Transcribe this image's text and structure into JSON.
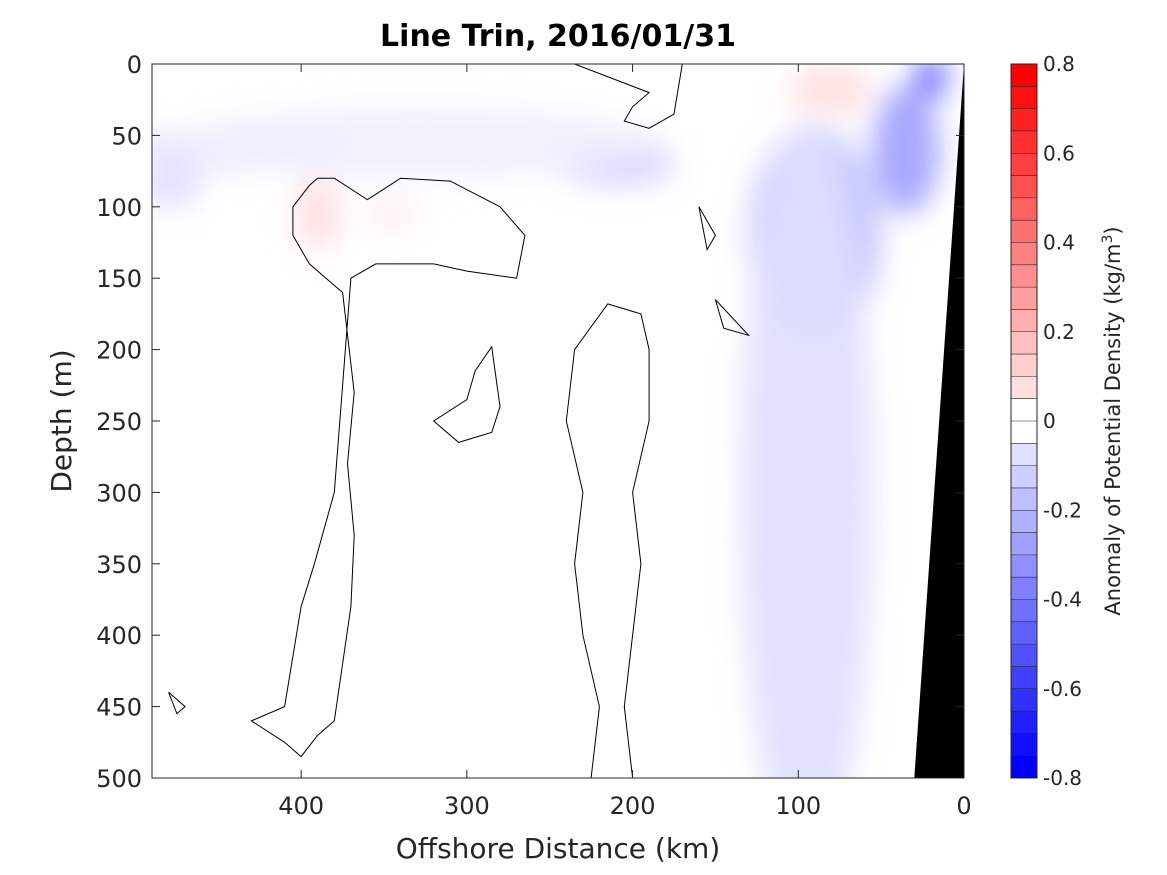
{
  "chart_data": {
    "type": "heatmap",
    "title": "Line Trin, 2016/01/31",
    "xlabel": "Offshore Distance (km)",
    "ylabel": "Depth (m)",
    "xlim": [
      490,
      0
    ],
    "ylim": [
      0,
      500
    ],
    "x_reversed": true,
    "y_reversed": true,
    "x_ticks": [
      400,
      300,
      200,
      100,
      0
    ],
    "x_tick_labels": [
      "400",
      "300",
      "200",
      "100",
      "0"
    ],
    "y_ticks": [
      0,
      50,
      100,
      150,
      200,
      250,
      300,
      350,
      400,
      450,
      500
    ],
    "y_tick_labels": [
      "0",
      "50",
      "100",
      "150",
      "200",
      "250",
      "300",
      "350",
      "400",
      "450",
      "500"
    ],
    "colorbar": {
      "label_main": "Anomaly of Potential Density (kg/m",
      "label_sup": "3",
      "label_end": ")",
      "range": [
        -0.8,
        0.8
      ],
      "step": 0.05,
      "ticks": [
        0.8,
        0.6,
        0.4,
        0.2,
        0,
        -0.2,
        -0.4,
        -0.6,
        -0.8
      ],
      "tick_labels": [
        "0.8",
        "0.6",
        "0.4",
        "0.2",
        "0",
        "-0.2",
        "-0.4",
        "-0.6",
        "-0.8"
      ],
      "colormap": "blue-white-red",
      "negative_color": "#0000ff",
      "zero_color": "#ffffff",
      "positive_color": "#ff0000"
    },
    "zero_contour": true,
    "grid": false,
    "mask_color": "#000000",
    "bottom_mask": {
      "description_free": true,
      "points": [
        [
          0,
          0
        ],
        [
          0,
          500
        ],
        [
          30,
          500
        ]
      ]
    },
    "field_features": [
      {
        "x": 480,
        "y": 85,
        "dx": 20,
        "dy": 15,
        "value": -0.12
      },
      {
        "x": 440,
        "y": 60,
        "dx": 60,
        "dy": 15,
        "value": -0.08
      },
      {
        "x": 390,
        "y": 105,
        "dx": 14,
        "dy": 25,
        "value": 0.08
      },
      {
        "x": 345,
        "y": 105,
        "dx": 18,
        "dy": 12,
        "value": 0.04
      },
      {
        "x": 210,
        "y": 70,
        "dx": 35,
        "dy": 15,
        "value": -0.14
      },
      {
        "x": 80,
        "y": 18,
        "dx": 25,
        "dy": 18,
        "value": 0.08
      },
      {
        "x": 20,
        "y": 10,
        "dx": 10,
        "dy": 15,
        "value": -0.5
      },
      {
        "x": 35,
        "y": 60,
        "dx": 20,
        "dy": 45,
        "value": -0.3
      },
      {
        "x": 90,
        "y": 120,
        "dx": 40,
        "dy": 75,
        "value": -0.22
      },
      {
        "x": 95,
        "y": 300,
        "dx": 40,
        "dy": 260,
        "value": -0.08
      },
      {
        "x": 330,
        "y": 55,
        "dx": 150,
        "dy": 25,
        "value": -0.05
      }
    ],
    "contours_zero": [
      [
        [
          170,
          0
        ],
        [
          235,
          0
        ],
        [
          190,
          20
        ],
        [
          200,
          30
        ],
        [
          205,
          40
        ],
        [
          190,
          45
        ],
        [
          175,
          35
        ],
        [
          170,
          0
        ]
      ],
      [
        [
          390,
          80
        ],
        [
          380,
          80
        ],
        [
          360,
          95
        ],
        [
          340,
          80
        ],
        [
          310,
          82
        ],
        [
          280,
          100
        ],
        [
          265,
          120
        ],
        [
          270,
          150
        ],
        [
          300,
          145
        ],
        [
          320,
          140
        ],
        [
          335,
          140
        ],
        [
          355,
          140
        ],
        [
          370,
          150
        ],
        [
          380,
          300
        ],
        [
          392,
          350
        ],
        [
          400,
          380
        ],
        [
          410,
          450
        ],
        [
          430,
          460
        ],
        [
          410,
          475
        ],
        [
          400,
          485
        ],
        [
          390,
          470
        ],
        [
          380,
          460
        ],
        [
          375,
          420
        ],
        [
          370,
          380
        ],
        [
          368,
          330
        ],
        [
          372,
          280
        ],
        [
          368,
          230
        ],
        [
          375,
          160
        ],
        [
          385,
          150
        ],
        [
          395,
          140
        ],
        [
          405,
          120
        ],
        [
          405,
          100
        ],
        [
          395,
          85
        ],
        [
          390,
          80
        ]
      ],
      [
        [
          215,
          168
        ],
        [
          195,
          175
        ],
        [
          190,
          200
        ],
        [
          190,
          250
        ],
        [
          200,
          300
        ],
        [
          195,
          350
        ],
        [
          200,
          400
        ],
        [
          205,
          450
        ],
        [
          200,
          500
        ],
        [
          225,
          500
        ],
        [
          220,
          450
        ],
        [
          230,
          400
        ],
        [
          235,
          350
        ],
        [
          230,
          300
        ],
        [
          240,
          250
        ],
        [
          235,
          200
        ],
        [
          215,
          168
        ]
      ],
      [
        [
          285,
          198
        ],
        [
          295,
          215
        ],
        [
          300,
          235
        ],
        [
          320,
          250
        ],
        [
          305,
          265
        ],
        [
          285,
          258
        ],
        [
          280,
          240
        ],
        [
          285,
          198
        ]
      ],
      [
        [
          150,
          165
        ],
        [
          130,
          190
        ],
        [
          145,
          185
        ],
        [
          150,
          165
        ]
      ],
      [
        [
          160,
          100
        ],
        [
          150,
          120
        ],
        [
          155,
          130
        ],
        [
          160,
          100
        ]
      ],
      [
        [
          480,
          440
        ],
        [
          475,
          455
        ],
        [
          470,
          450
        ],
        [
          480,
          440
        ]
      ]
    ]
  }
}
